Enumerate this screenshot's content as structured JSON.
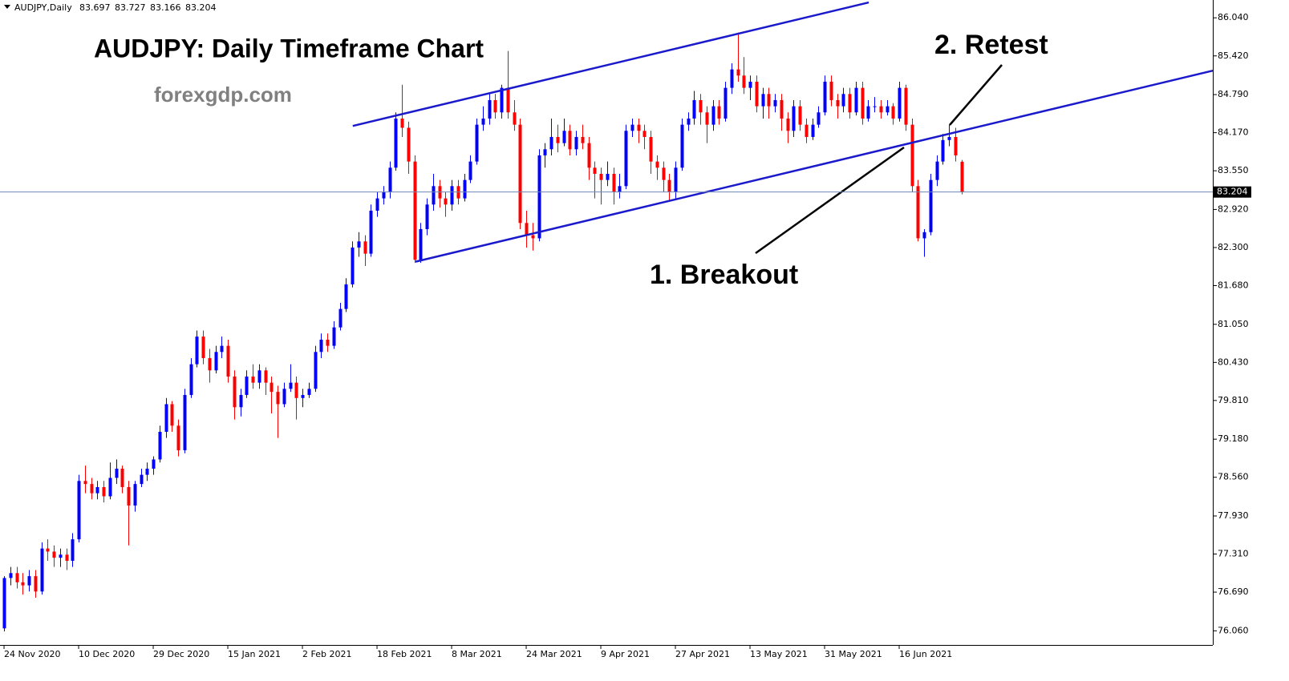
{
  "chart_data": {
    "type": "candlestick",
    "symbol": "AUDJPY,Daily",
    "title": "AUDJPY: Daily Timeframe Chart",
    "subtitle": "forexgdp.com",
    "annotations": [
      "1. Breakout",
      "2. Retest"
    ],
    "up_color": "#0000ff",
    "down_color": "#ff0000",
    "trendline_color": "#1a1acc",
    "price_line_color": "#6f87b4",
    "xlim": [
      -0.65,
      194.45
    ],
    "ylim": [
      75.83,
      86.33
    ],
    "xticks": [
      {
        "value": 0,
        "label": "24 Nov 2020"
      },
      {
        "value": 12,
        "label": "10 Dec 2020"
      },
      {
        "value": 24,
        "label": "29 Dec 2020"
      },
      {
        "value": 36,
        "label": "15 Jan 2021"
      },
      {
        "value": 48,
        "label": "2 Feb 2021"
      },
      {
        "value": 60,
        "label": "18 Feb 2021"
      },
      {
        "value": 72,
        "label": "8 Mar 2021"
      },
      {
        "value": 84,
        "label": "24 Mar 2021"
      },
      {
        "value": 96,
        "label": "9 Apr 2021"
      },
      {
        "value": 108,
        "label": "27 Apr 2021"
      },
      {
        "value": 120,
        "label": "13 May 2021"
      },
      {
        "value": 132,
        "label": "31 May 2021"
      },
      {
        "value": 144,
        "label": "16 Jun 2021"
      }
    ],
    "yticks": [
      {
        "value": 86.04,
        "label": "86.040"
      },
      {
        "value": 85.42,
        "label": "85.420"
      },
      {
        "value": 84.79,
        "label": "84.790"
      },
      {
        "value": 84.17,
        "label": "84.170"
      },
      {
        "value": 83.55,
        "label": "83.550"
      },
      {
        "value": 82.92,
        "label": "82.920"
      },
      {
        "value": 82.3,
        "label": "82.300"
      },
      {
        "value": 81.68,
        "label": "81.680"
      },
      {
        "value": 81.05,
        "label": "81.050"
      },
      {
        "value": 80.43,
        "label": "80.430"
      },
      {
        "value": 79.81,
        "label": "79.810"
      },
      {
        "value": 79.18,
        "label": "79.180"
      },
      {
        "value": 78.56,
        "label": "78.560"
      },
      {
        "value": 77.93,
        "label": "77.930"
      },
      {
        "value": 77.31,
        "label": "77.310"
      },
      {
        "value": 76.69,
        "label": "76.690"
      },
      {
        "value": 76.06,
        "label": "76.060"
      }
    ],
    "trendlines": [
      {
        "x": [
          56.1,
          139.1
        ],
        "y": [
          84.28,
          86.29
        ]
      },
      {
        "x": [
          66.2,
          194.45
        ],
        "y": [
          82.07,
          85.18
        ]
      }
    ],
    "candles": [
      [
        76.1,
        76.95,
        76.05,
        76.92
      ],
      [
        76.92,
        77.1,
        76.8,
        77.0
      ],
      [
        77.0,
        77.1,
        76.75,
        76.85
      ],
      [
        76.85,
        77.0,
        76.65,
        76.8
      ],
      [
        76.8,
        77.05,
        76.7,
        76.95
      ],
      [
        76.95,
        77.05,
        76.6,
        76.7
      ],
      [
        76.7,
        77.5,
        76.65,
        77.4
      ],
      [
        77.4,
        77.55,
        77.2,
        77.35
      ],
      [
        77.35,
        77.45,
        77.1,
        77.25
      ],
      [
        77.25,
        77.4,
        77.1,
        77.3
      ],
      [
        77.3,
        77.4,
        77.05,
        77.2
      ],
      [
        77.2,
        77.65,
        77.1,
        77.55
      ],
      [
        77.55,
        78.6,
        77.5,
        78.5
      ],
      [
        78.5,
        78.75,
        78.3,
        78.45
      ],
      [
        78.45,
        78.55,
        78.2,
        78.3
      ],
      [
        78.3,
        78.5,
        78.2,
        78.4
      ],
      [
        78.4,
        78.5,
        78.15,
        78.25
      ],
      [
        78.25,
        78.8,
        78.2,
        78.55
      ],
      [
        78.55,
        78.85,
        78.45,
        78.7
      ],
      [
        78.7,
        78.75,
        78.3,
        78.4
      ],
      [
        78.4,
        78.5,
        77.45,
        78.1
      ],
      [
        78.1,
        78.5,
        78.0,
        78.45
      ],
      [
        78.45,
        78.7,
        78.4,
        78.6
      ],
      [
        78.6,
        78.8,
        78.5,
        78.7
      ],
      [
        78.7,
        78.9,
        78.6,
        78.85
      ],
      [
        78.85,
        79.4,
        78.8,
        79.3
      ],
      [
        79.3,
        79.85,
        79.2,
        79.75
      ],
      [
        79.75,
        79.8,
        79.3,
        79.4
      ],
      [
        79.4,
        79.5,
        78.9,
        79.0
      ],
      [
        79.0,
        80.0,
        78.95,
        79.9
      ],
      [
        79.9,
        80.5,
        79.85,
        80.4
      ],
      [
        80.4,
        80.95,
        80.35,
        80.85
      ],
      [
        80.85,
        80.95,
        80.4,
        80.5
      ],
      [
        80.5,
        80.65,
        80.1,
        80.3
      ],
      [
        80.3,
        80.7,
        80.25,
        80.6
      ],
      [
        80.6,
        80.85,
        80.5,
        80.7
      ],
      [
        80.7,
        80.8,
        80.1,
        80.2
      ],
      [
        80.2,
        80.3,
        79.5,
        79.7
      ],
      [
        79.7,
        80.0,
        79.55,
        79.9
      ],
      [
        79.9,
        80.3,
        79.85,
        80.2
      ],
      [
        80.2,
        80.4,
        80.0,
        80.1
      ],
      [
        80.1,
        80.4,
        80.0,
        80.3
      ],
      [
        80.3,
        80.35,
        79.9,
        80.1
      ],
      [
        80.1,
        80.2,
        79.6,
        79.95
      ],
      [
        79.95,
        80.05,
        79.2,
        79.75
      ],
      [
        79.75,
        80.1,
        79.7,
        80.0
      ],
      [
        80.0,
        80.4,
        79.95,
        80.1
      ],
      [
        80.1,
        80.2,
        79.5,
        79.85
      ],
      [
        79.85,
        80.0,
        79.7,
        79.9
      ],
      [
        79.9,
        80.1,
        79.85,
        80.0
      ],
      [
        80.0,
        80.7,
        79.95,
        80.6
      ],
      [
        80.6,
        80.9,
        80.5,
        80.8
      ],
      [
        80.8,
        80.9,
        80.6,
        80.7
      ],
      [
        80.7,
        81.1,
        80.65,
        81.0
      ],
      [
        81.0,
        81.4,
        80.95,
        81.3
      ],
      [
        81.3,
        81.8,
        81.25,
        81.7
      ],
      [
        81.7,
        82.4,
        81.65,
        82.3
      ],
      [
        82.3,
        82.55,
        82.15,
        82.4
      ],
      [
        82.4,
        82.5,
        82.0,
        82.2
      ],
      [
        82.2,
        83.0,
        82.15,
        82.9
      ],
      [
        82.9,
        83.2,
        82.8,
        83.1
      ],
      [
        83.1,
        83.3,
        83.0,
        83.2
      ],
      [
        83.2,
        83.7,
        83.1,
        83.6
      ],
      [
        83.6,
        84.5,
        83.55,
        84.4
      ],
      [
        84.4,
        84.95,
        84.1,
        84.25
      ],
      [
        84.25,
        84.35,
        83.5,
        83.7
      ],
      [
        83.7,
        83.8,
        82.05,
        82.1
      ],
      [
        82.1,
        82.7,
        82.05,
        82.6
      ],
      [
        82.6,
        83.1,
        82.5,
        83.0
      ],
      [
        83.0,
        83.5,
        82.9,
        83.3
      ],
      [
        83.3,
        83.4,
        82.95,
        83.1
      ],
      [
        83.1,
        83.2,
        82.8,
        83.0
      ],
      [
        83.0,
        83.4,
        82.9,
        83.3
      ],
      [
        83.3,
        83.4,
        83.0,
        83.1
      ],
      [
        83.1,
        83.5,
        83.05,
        83.4
      ],
      [
        83.4,
        83.8,
        83.35,
        83.7
      ],
      [
        83.7,
        84.4,
        83.65,
        84.3
      ],
      [
        84.3,
        84.6,
        84.2,
        84.4
      ],
      [
        84.4,
        84.8,
        84.3,
        84.7
      ],
      [
        84.7,
        84.8,
        84.4,
        84.5
      ],
      [
        84.5,
        84.95,
        84.4,
        84.9
      ],
      [
        84.9,
        85.5,
        84.4,
        84.5
      ],
      [
        84.5,
        84.7,
        84.2,
        84.3
      ],
      [
        84.3,
        84.4,
        82.6,
        82.7
      ],
      [
        82.7,
        82.9,
        82.3,
        82.5
      ],
      [
        82.5,
        82.7,
        82.25,
        82.45
      ],
      [
        82.45,
        83.9,
        82.4,
        83.8
      ],
      [
        83.8,
        84.0,
        83.6,
        83.9
      ],
      [
        83.9,
        84.4,
        83.8,
        84.1
      ],
      [
        84.1,
        84.3,
        83.85,
        84.0
      ],
      [
        84.0,
        84.4,
        83.95,
        84.2
      ],
      [
        84.2,
        84.3,
        83.8,
        83.9
      ],
      [
        83.9,
        84.2,
        83.8,
        84.1
      ],
      [
        84.1,
        84.3,
        83.9,
        84.0
      ],
      [
        84.0,
        84.1,
        83.4,
        83.6
      ],
      [
        83.6,
        83.7,
        83.1,
        83.5
      ],
      [
        83.5,
        83.6,
        83.0,
        83.4
      ],
      [
        83.4,
        83.7,
        83.3,
        83.5
      ],
      [
        83.5,
        83.6,
        83.0,
        83.2
      ],
      [
        83.2,
        83.5,
        83.1,
        83.3
      ],
      [
        83.3,
        84.3,
        83.25,
        84.2
      ],
      [
        84.2,
        84.4,
        84.1,
        84.3
      ],
      [
        84.3,
        84.4,
        84.0,
        84.2
      ],
      [
        84.2,
        84.3,
        83.9,
        84.1
      ],
      [
        84.1,
        84.2,
        83.5,
        83.7
      ],
      [
        83.7,
        83.8,
        83.4,
        83.6
      ],
      [
        83.6,
        83.7,
        83.2,
        83.4
      ],
      [
        83.4,
        83.5,
        83.05,
        83.2
      ],
      [
        83.2,
        83.7,
        83.1,
        83.6
      ],
      [
        83.6,
        84.4,
        83.55,
        84.3
      ],
      [
        84.3,
        84.5,
        84.2,
        84.4
      ],
      [
        84.4,
        84.85,
        84.3,
        84.7
      ],
      [
        84.7,
        84.8,
        84.3,
        84.5
      ],
      [
        84.5,
        84.6,
        84.0,
        84.3
      ],
      [
        84.3,
        84.7,
        84.2,
        84.6
      ],
      [
        84.6,
        84.7,
        84.3,
        84.4
      ],
      [
        84.4,
        85.0,
        84.35,
        84.9
      ],
      [
        84.9,
        85.3,
        84.8,
        85.2
      ],
      [
        85.2,
        85.8,
        85.0,
        85.1
      ],
      [
        85.1,
        85.4,
        84.8,
        84.9
      ],
      [
        84.9,
        85.1,
        84.7,
        85.0
      ],
      [
        85.0,
        85.1,
        84.5,
        84.6
      ],
      [
        84.6,
        84.9,
        84.4,
        84.8
      ],
      [
        84.8,
        84.9,
        84.4,
        84.6
      ],
      [
        84.6,
        84.8,
        84.5,
        84.7
      ],
      [
        84.7,
        84.8,
        84.2,
        84.4
      ],
      [
        84.4,
        84.5,
        84.0,
        84.2
      ],
      [
        84.2,
        84.7,
        84.1,
        84.6
      ],
      [
        84.6,
        84.7,
        84.2,
        84.3
      ],
      [
        84.3,
        84.4,
        84.0,
        84.1
      ],
      [
        84.1,
        84.4,
        84.05,
        84.3
      ],
      [
        84.3,
        84.6,
        84.25,
        84.5
      ],
      [
        84.5,
        85.1,
        84.45,
        85.0
      ],
      [
        85.0,
        85.1,
        84.6,
        84.7
      ],
      [
        84.7,
        84.8,
        84.4,
        84.6
      ],
      [
        84.6,
        84.9,
        84.5,
        84.8
      ],
      [
        84.8,
        84.9,
        84.4,
        84.5
      ],
      [
        84.5,
        85.0,
        84.45,
        84.9
      ],
      [
        84.9,
        85.0,
        84.3,
        84.4
      ],
      [
        84.4,
        84.7,
        84.35,
        84.6
      ],
      [
        84.6,
        84.75,
        84.5,
        84.6
      ],
      [
        84.6,
        84.7,
        84.4,
        84.5
      ],
      [
        84.5,
        84.7,
        84.45,
        84.6
      ],
      [
        84.6,
        84.65,
        84.3,
        84.4
      ],
      [
        84.4,
        85.0,
        84.35,
        84.9
      ],
      [
        84.9,
        84.95,
        84.2,
        84.3
      ],
      [
        84.3,
        84.4,
        83.2,
        83.3
      ],
      [
        83.3,
        83.4,
        82.4,
        82.45
      ],
      [
        82.45,
        82.6,
        82.15,
        82.55
      ],
      [
        82.55,
        83.5,
        82.5,
        83.4
      ],
      [
        83.4,
        83.8,
        83.3,
        83.7
      ],
      [
        83.7,
        84.15,
        83.65,
        84.05
      ],
      [
        84.05,
        84.3,
        83.95,
        84.1
      ],
      [
        84.1,
        84.25,
        83.7,
        83.8
      ],
      [
        83.697,
        83.727,
        83.166,
        83.204
      ]
    ]
  }
}
